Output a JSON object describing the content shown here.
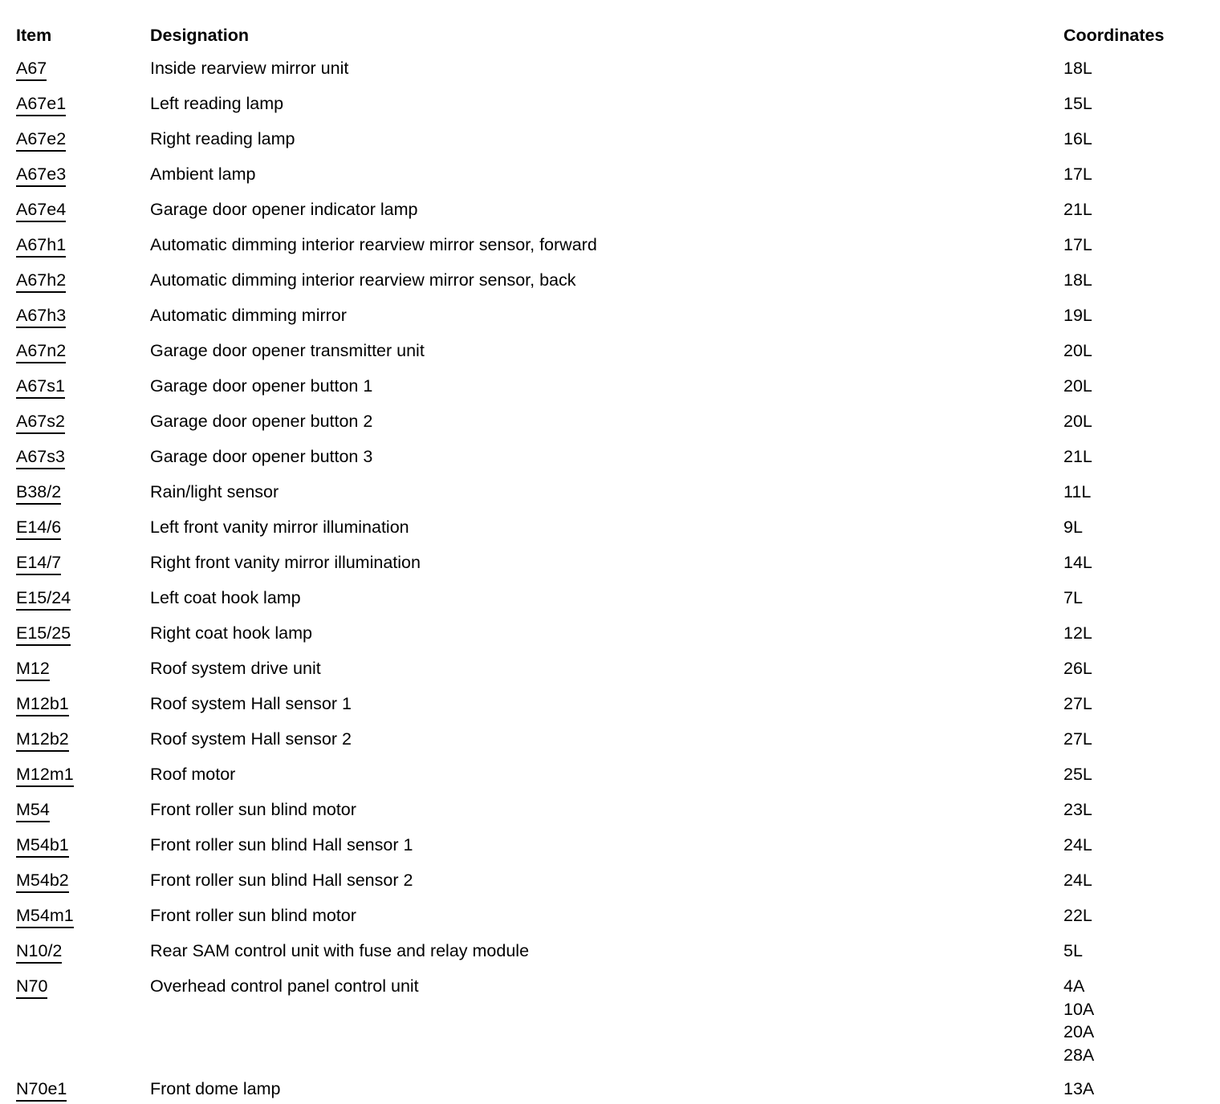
{
  "page": {
    "background_color": "#ffffff",
    "text_color": "#000000"
  },
  "table": {
    "columns": [
      {
        "key": "item",
        "label": "Item"
      },
      {
        "key": "designation",
        "label": "Designation"
      },
      {
        "key": "coordinates",
        "label": "Coordinates"
      }
    ],
    "rows": [
      {
        "item": "A67",
        "designation": "Inside rearview mirror unit",
        "coordinates": [
          "18L"
        ]
      },
      {
        "item": "A67e1",
        "designation": "Left reading lamp",
        "coordinates": [
          "15L"
        ]
      },
      {
        "item": "A67e2",
        "designation": "Right reading lamp",
        "coordinates": [
          "16L"
        ]
      },
      {
        "item": "A67e3",
        "designation": "Ambient lamp",
        "coordinates": [
          "17L"
        ]
      },
      {
        "item": "A67e4",
        "designation": "Garage door opener indicator lamp",
        "coordinates": [
          "21L"
        ]
      },
      {
        "item": "A67h1",
        "designation": "Automatic dimming interior rearview mirror sensor, forward",
        "coordinates": [
          "17L"
        ]
      },
      {
        "item": "A67h2",
        "designation": "Automatic dimming interior rearview mirror sensor, back",
        "coordinates": [
          "18L"
        ]
      },
      {
        "item": "A67h3",
        "designation": "Automatic dimming mirror",
        "coordinates": [
          "19L"
        ]
      },
      {
        "item": "A67n2",
        "designation": "Garage door opener transmitter unit",
        "coordinates": [
          "20L"
        ]
      },
      {
        "item": "A67s1",
        "designation": "Garage door opener button 1",
        "coordinates": [
          "20L"
        ]
      },
      {
        "item": "A67s2",
        "designation": "Garage door opener button 2",
        "coordinates": [
          "20L"
        ]
      },
      {
        "item": "A67s3",
        "designation": "Garage door opener button 3",
        "coordinates": [
          "21L"
        ]
      },
      {
        "item": "B38/2",
        "designation": "Rain/light sensor",
        "coordinates": [
          "11L"
        ]
      },
      {
        "item": "E14/6",
        "designation": "Left front vanity mirror illumination",
        "coordinates": [
          "9L"
        ]
      },
      {
        "item": "E14/7",
        "designation": "Right front vanity mirror illumination",
        "coordinates": [
          "14L"
        ]
      },
      {
        "item": "E15/24",
        "designation": "Left coat hook lamp",
        "coordinates": [
          "7L"
        ]
      },
      {
        "item": "E15/25",
        "designation": "Right coat hook lamp",
        "coordinates": [
          "12L"
        ]
      },
      {
        "item": "M12",
        "designation": "Roof system drive unit",
        "coordinates": [
          "26L"
        ]
      },
      {
        "item": "M12b1",
        "designation": "Roof system Hall sensor 1",
        "coordinates": [
          "27L"
        ]
      },
      {
        "item": "M12b2",
        "designation": "Roof system Hall sensor 2",
        "coordinates": [
          "27L"
        ]
      },
      {
        "item": "M12m1",
        "designation": "Roof motor",
        "coordinates": [
          "25L"
        ]
      },
      {
        "item": "M54",
        "designation": "Front roller sun blind motor",
        "coordinates": [
          "23L"
        ]
      },
      {
        "item": "M54b1",
        "designation": "Front roller sun blind Hall sensor 1",
        "coordinates": [
          "24L"
        ]
      },
      {
        "item": "M54b2",
        "designation": "Front roller sun blind Hall sensor 2",
        "coordinates": [
          "24L"
        ]
      },
      {
        "item": "M54m1",
        "designation": "Front roller sun blind motor",
        "coordinates": [
          "22L"
        ]
      },
      {
        "item": "N10/2",
        "designation": "Rear SAM control unit with fuse and relay module",
        "coordinates": [
          "5L"
        ]
      },
      {
        "item": "N70",
        "designation": "Overhead control panel control unit",
        "coordinates": [
          "4A",
          "10A",
          "20A",
          "28A"
        ]
      },
      {
        "item": "N70e1",
        "designation": "Front dome lamp",
        "coordinates": [
          "13A"
        ]
      }
    ]
  }
}
